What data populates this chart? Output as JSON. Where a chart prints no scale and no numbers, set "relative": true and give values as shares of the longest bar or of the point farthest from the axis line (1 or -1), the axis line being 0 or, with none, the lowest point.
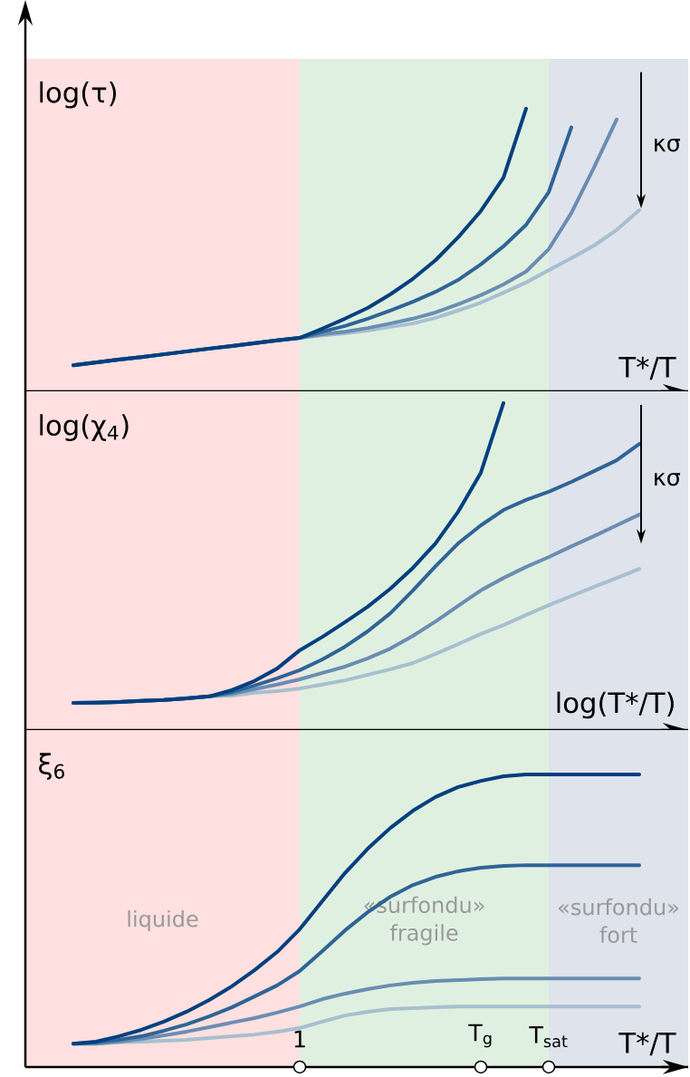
{
  "chart_data": [
    {
      "type": "line",
      "relative": true,
      "ylabel": "log(τ)",
      "xlabel": "T*/T",
      "tick_labels": false,
      "annotations": [
        "κσ"
      ],
      "categories": [
        null,
        null,
        null,
        null,
        null,
        null,
        null,
        null,
        null,
        null,
        "1",
        null,
        null,
        null,
        null,
        null,
        null,
        null,
        "T$_{g}$",
        null,
        null,
        "T$_{sat}$",
        null,
        null,
        null,
        null
      ],
      "bands": [
        {
          "axis": "x",
          "from": "1",
          "to": "T$_{sat}$",
          "color": "#e0f0e0"
        }
      ],
      "series": [
        {
          "color": "#a7bfd0",
          "values": [
            0.092,
            0.102,
            0.112,
            0.121,
            0.131,
            0.141,
            0.151,
            0.16,
            0.17,
            0.18,
            0.189,
            0.198,
            0.205,
            0.215,
            0.228,
            0.24,
            0.26,
            0.286,
            0.314,
            0.349,
            0.385,
            0.429,
            0.471,
            0.516,
            0.571,
            0.641
          ]
        },
        {
          "color": "#6a8db3",
          "values": [
            0.092,
            0.102,
            0.112,
            0.121,
            0.131,
            0.141,
            0.151,
            0.16,
            0.17,
            0.18,
            0.189,
            0.202,
            0.211,
            0.224,
            0.24,
            0.257,
            0.279,
            0.308,
            0.34,
            0.378,
            0.424,
            0.503,
            0.631,
            0.792,
            0.962,
            null
          ]
        },
        {
          "color": "#2f6497",
          "values": [
            0.092,
            0.102,
            0.112,
            0.121,
            0.131,
            0.141,
            0.151,
            0.16,
            0.17,
            0.18,
            0.189,
            0.211,
            0.231,
            0.257,
            0.286,
            0.317,
            0.352,
            0.394,
            0.449,
            0.513,
            0.589,
            0.705,
            0.934,
            null,
            null,
            null
          ]
        },
        {
          "color": "#003f7f",
          "values": [
            0.092,
            0.102,
            0.112,
            0.121,
            0.131,
            0.141,
            0.151,
            0.16,
            0.17,
            0.18,
            0.189,
            0.222,
            0.257,
            0.295,
            0.343,
            0.398,
            0.464,
            0.545,
            0.638,
            0.756,
            1,
            null,
            null,
            null,
            null,
            null
          ]
        }
      ]
    },
    {
      "type": "line",
      "relative": true,
      "ylabel": "log(χ$_{4}$)",
      "xlabel": "log(T*/T)",
      "tick_labels": false,
      "annotations": [
        "κσ"
      ],
      "categories": [
        null,
        null,
        null,
        null,
        null,
        null,
        null,
        null,
        null,
        null,
        "1",
        null,
        null,
        null,
        null,
        null,
        null,
        null,
        "T$_{g}$",
        null,
        null,
        "T$_{sat}$",
        null,
        null,
        null,
        null
      ],
      "bands": [
        {
          "axis": "x",
          "from": "1",
          "to": "T$_{sat}$",
          "color": "#e0f0e0"
        }
      ],
      "series": [
        {
          "color": "#a7bfd0",
          "values": [
            0.083,
            0.084,
            0.086,
            0.089,
            0.092,
            0.097,
            0.103,
            0.105,
            0.114,
            0.119,
            0.127,
            0.139,
            0.152,
            0.169,
            0.186,
            0.205,
            0.233,
            0.263,
            0.294,
            0.321,
            0.352,
            0.382,
            0.41,
            0.438,
            0.465,
            0.493
          ]
        },
        {
          "color": "#6a8db3",
          "values": [
            0.083,
            0.084,
            0.086,
            0.089,
            0.092,
            0.097,
            0.103,
            0.111,
            0.125,
            0.139,
            0.155,
            0.175,
            0.194,
            0.219,
            0.249,
            0.288,
            0.332,
            0.38,
            0.427,
            0.465,
            0.499,
            0.529,
            0.562,
            0.593,
            0.626,
            0.659
          ]
        },
        {
          "color": "#2f6497",
          "values": [
            0.083,
            0.084,
            0.086,
            0.089,
            0.092,
            0.097,
            0.103,
            0.116,
            0.136,
            0.158,
            0.183,
            0.216,
            0.255,
            0.302,
            0.357,
            0.427,
            0.501,
            0.571,
            0.626,
            0.673,
            0.704,
            0.729,
            0.759,
            0.792,
            0.825,
            0.875
          ]
        },
        {
          "color": "#003f7f",
          "values": [
            0.083,
            0.084,
            0.086,
            0.089,
            0.092,
            0.097,
            0.103,
            0.122,
            0.15,
            0.188,
            0.244,
            0.285,
            0.33,
            0.377,
            0.432,
            0.496,
            0.571,
            0.668,
            0.787,
            1,
            null,
            null,
            null,
            null,
            null,
            null
          ]
        }
      ]
    },
    {
      "type": "line",
      "relative": true,
      "ylabel": "ξ$_{6}$",
      "xlabel": "T*/T",
      "tick_labels": "x",
      "categories": [
        null,
        null,
        null,
        null,
        null,
        null,
        null,
        null,
        null,
        null,
        "1",
        null,
        null,
        null,
        null,
        null,
        null,
        null,
        "T$_{g}$",
        null,
        null,
        "T$_{sat}$",
        null,
        null,
        null,
        null
      ],
      "annotations": [
        "liquide",
        "«surfondu» fort"
      ],
      "bands": [
        {
          "axis": "x",
          "from": "1",
          "to": "T$_{sat}$",
          "color": "#e0f0e0",
          "label": "«surfondu» fragile"
        }
      ],
      "series": [
        {
          "color": "#a7bfd0",
          "values": [
            0.08,
            0.08,
            0.084,
            0.087,
            0.09,
            0.093,
            0.099,
            0.105,
            0.111,
            0.121,
            0.133,
            0.155,
            0.176,
            0.189,
            0.198,
            0.201,
            0.204,
            0.207,
            0.207,
            0.207,
            0.207,
            0.207,
            0.207,
            0.207,
            0.207,
            0.207
          ]
        },
        {
          "color": "#6a8db3",
          "values": [
            0.08,
            0.08,
            0.087,
            0.096,
            0.108,
            0.121,
            0.136,
            0.152,
            0.167,
            0.186,
            0.207,
            0.232,
            0.251,
            0.266,
            0.279,
            0.288,
            0.294,
            0.297,
            0.3,
            0.303,
            0.303,
            0.303,
            0.303,
            0.303,
            0.303,
            0.303
          ]
        },
        {
          "color": "#2f6497",
          "values": [
            0.08,
            0.084,
            0.093,
            0.105,
            0.124,
            0.146,
            0.173,
            0.204,
            0.241,
            0.279,
            0.328,
            0.396,
            0.467,
            0.529,
            0.582,
            0.622,
            0.65,
            0.669,
            0.681,
            0.687,
            0.69,
            0.69,
            0.69,
            0.69,
            0.69,
            0.69
          ]
        },
        {
          "color": "#003f7f",
          "values": [
            0.08,
            0.087,
            0.105,
            0.127,
            0.155,
            0.189,
            0.229,
            0.276,
            0.331,
            0.393,
            0.471,
            0.567,
            0.663,
            0.746,
            0.817,
            0.876,
            0.923,
            0.957,
            0.978,
            0.994,
            1,
            1,
            1,
            1,
            1,
            1
          ]
        }
      ]
    }
  ]
}
